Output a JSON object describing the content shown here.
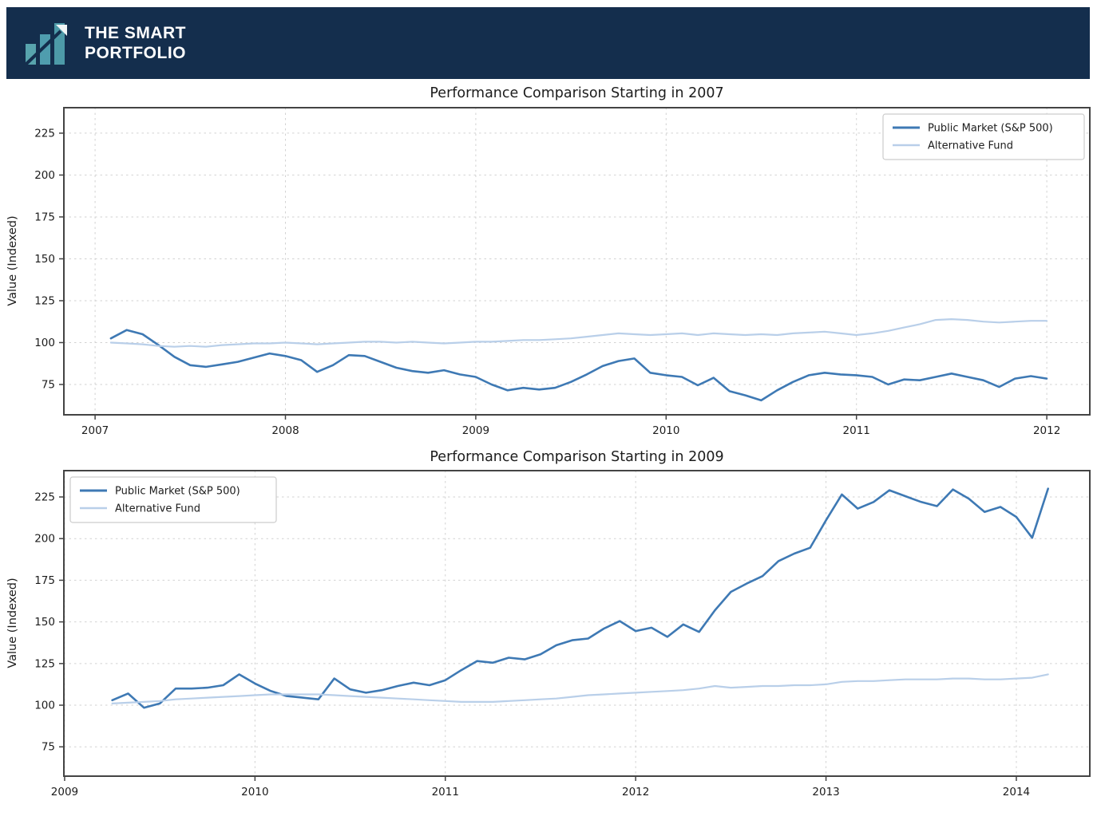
{
  "header": {
    "brand_line1": "THE SMART",
    "brand_line2": "PORTFOLIO",
    "bg_color": "#142e4d",
    "logo": {
      "bar_colors": [
        "#58a4ad",
        "#4f9dae",
        "#4d9aa8"
      ],
      "arrow_color": "#142e4d",
      "arrowhead_color": "#f2f6f7"
    }
  },
  "chart_data": [
    {
      "type": "line",
      "title": "Performance Comparison Starting in 2007",
      "xlabel": "",
      "ylabel": "Value (Indexed)",
      "x_ticks": [
        2007,
        2008,
        2009,
        2010,
        2011,
        2012
      ],
      "y_ticks": [
        75,
        100,
        125,
        150,
        175,
        200,
        225
      ],
      "x_range": [
        2006.836,
        2012.226
      ],
      "y_range": [
        56.9,
        240.2
      ],
      "x_start": 2007.083,
      "x_step": 0.083333,
      "grid": true,
      "legend_position": "top-right",
      "axis_color": "#444444",
      "grid_color": "#d2d2d2",
      "text_color": "#1c1c1c",
      "series": [
        {
          "name": "Public Market (S&P 500)",
          "color": "#3e79b4",
          "width": 2.6,
          "values": [
            102.5,
            107.5,
            105,
            98.5,
            91.5,
            86.5,
            85.5,
            87,
            88.5,
            91,
            93.5,
            92,
            89.5,
            82.5,
            86.5,
            92.5,
            92,
            88.5,
            85,
            83,
            82,
            83.5,
            81,
            79.5,
            75,
            71.5,
            73,
            72,
            73,
            76.5,
            81,
            86,
            89,
            90.5,
            82,
            80.5,
            79.5,
            74.5,
            79,
            71,
            68.5,
            65.5,
            71.5,
            76.5,
            80.5,
            82,
            81,
            80.5,
            79.5,
            75,
            78,
            77.5,
            79.5,
            81.5,
            79.5,
            77.5,
            73.5,
            78.5,
            80,
            78.5
          ]
        },
        {
          "name": "Alternative Fund",
          "color": "#b9cfe9",
          "width": 2.2,
          "values": [
            100,
            99.5,
            99,
            98,
            97.5,
            98,
            97.5,
            98.5,
            99,
            99.5,
            99.5,
            100,
            99.5,
            99,
            99.5,
            100,
            100.5,
            100.5,
            100,
            100.5,
            100,
            99.5,
            100,
            100.5,
            100.5,
            101,
            101.5,
            101.5,
            102,
            102.5,
            103.5,
            104.5,
            105.5,
            105,
            104.5,
            105,
            105.5,
            104.5,
            105.5,
            105,
            104.5,
            105,
            104.5,
            105.5,
            106,
            106.5,
            105.5,
            104.5,
            105.5,
            107,
            109,
            111,
            113.5,
            114,
            113.5,
            112.5,
            112,
            112.5,
            113,
            113
          ]
        }
      ]
    },
    {
      "type": "line",
      "title": "Performance Comparison Starting in 2009",
      "xlabel": "",
      "ylabel": "Value (Indexed)",
      "x_ticks": [
        2009,
        2010,
        2011,
        2012,
        2013,
        2014
      ],
      "y_ticks": [
        75,
        100,
        125,
        150,
        175,
        200,
        225
      ],
      "x_range": [
        2008.996,
        2014.386
      ],
      "y_range": [
        57.4,
        240.8
      ],
      "x_start": 2009.25,
      "x_step": 0.083333,
      "grid": true,
      "legend_position": "top-left",
      "axis_color": "#444444",
      "grid_color": "#d2d2d2",
      "text_color": "#1c1c1c",
      "series": [
        {
          "name": "Public Market (S&P 500)",
          "color": "#3e79b4",
          "width": 2.6,
          "values": [
            103,
            107,
            98.5,
            101,
            110,
            110,
            110.5,
            112,
            118.5,
            113,
            108.5,
            105.5,
            104.5,
            103.5,
            116,
            109.5,
            107.5,
            109,
            111.5,
            113.5,
            112,
            115,
            121,
            126.5,
            125.5,
            128.5,
            127.5,
            130.5,
            136,
            139,
            140,
            146,
            150.5,
            144.5,
            146.5,
            141,
            148.5,
            144,
            157,
            168,
            173,
            177.5,
            186.5,
            191,
            194.5,
            211,
            226.5,
            218,
            222,
            229,
            225.5,
            222,
            219.5,
            229.5,
            224,
            216,
            219,
            213,
            200.5,
            230
          ]
        },
        {
          "name": "Alternative Fund",
          "color": "#b9cfe9",
          "width": 2.2,
          "values": [
            101,
            101.5,
            102,
            102.5,
            103.5,
            104,
            104.5,
            105,
            105.5,
            106,
            106.5,
            106.5,
            106.5,
            106.5,
            106,
            105.5,
            105,
            104.5,
            104,
            103.5,
            103,
            102.5,
            102,
            102,
            102,
            102.5,
            103,
            103.5,
            104,
            105,
            106,
            106.5,
            107,
            107.5,
            108,
            108.5,
            109,
            110,
            111.5,
            110.5,
            111,
            111.5,
            111.5,
            112,
            112,
            112.5,
            114,
            114.5,
            114.5,
            115,
            115.5,
            115.5,
            115.5,
            116,
            116,
            115.5,
            115.5,
            116,
            116.5,
            118.5
          ]
        }
      ]
    }
  ]
}
